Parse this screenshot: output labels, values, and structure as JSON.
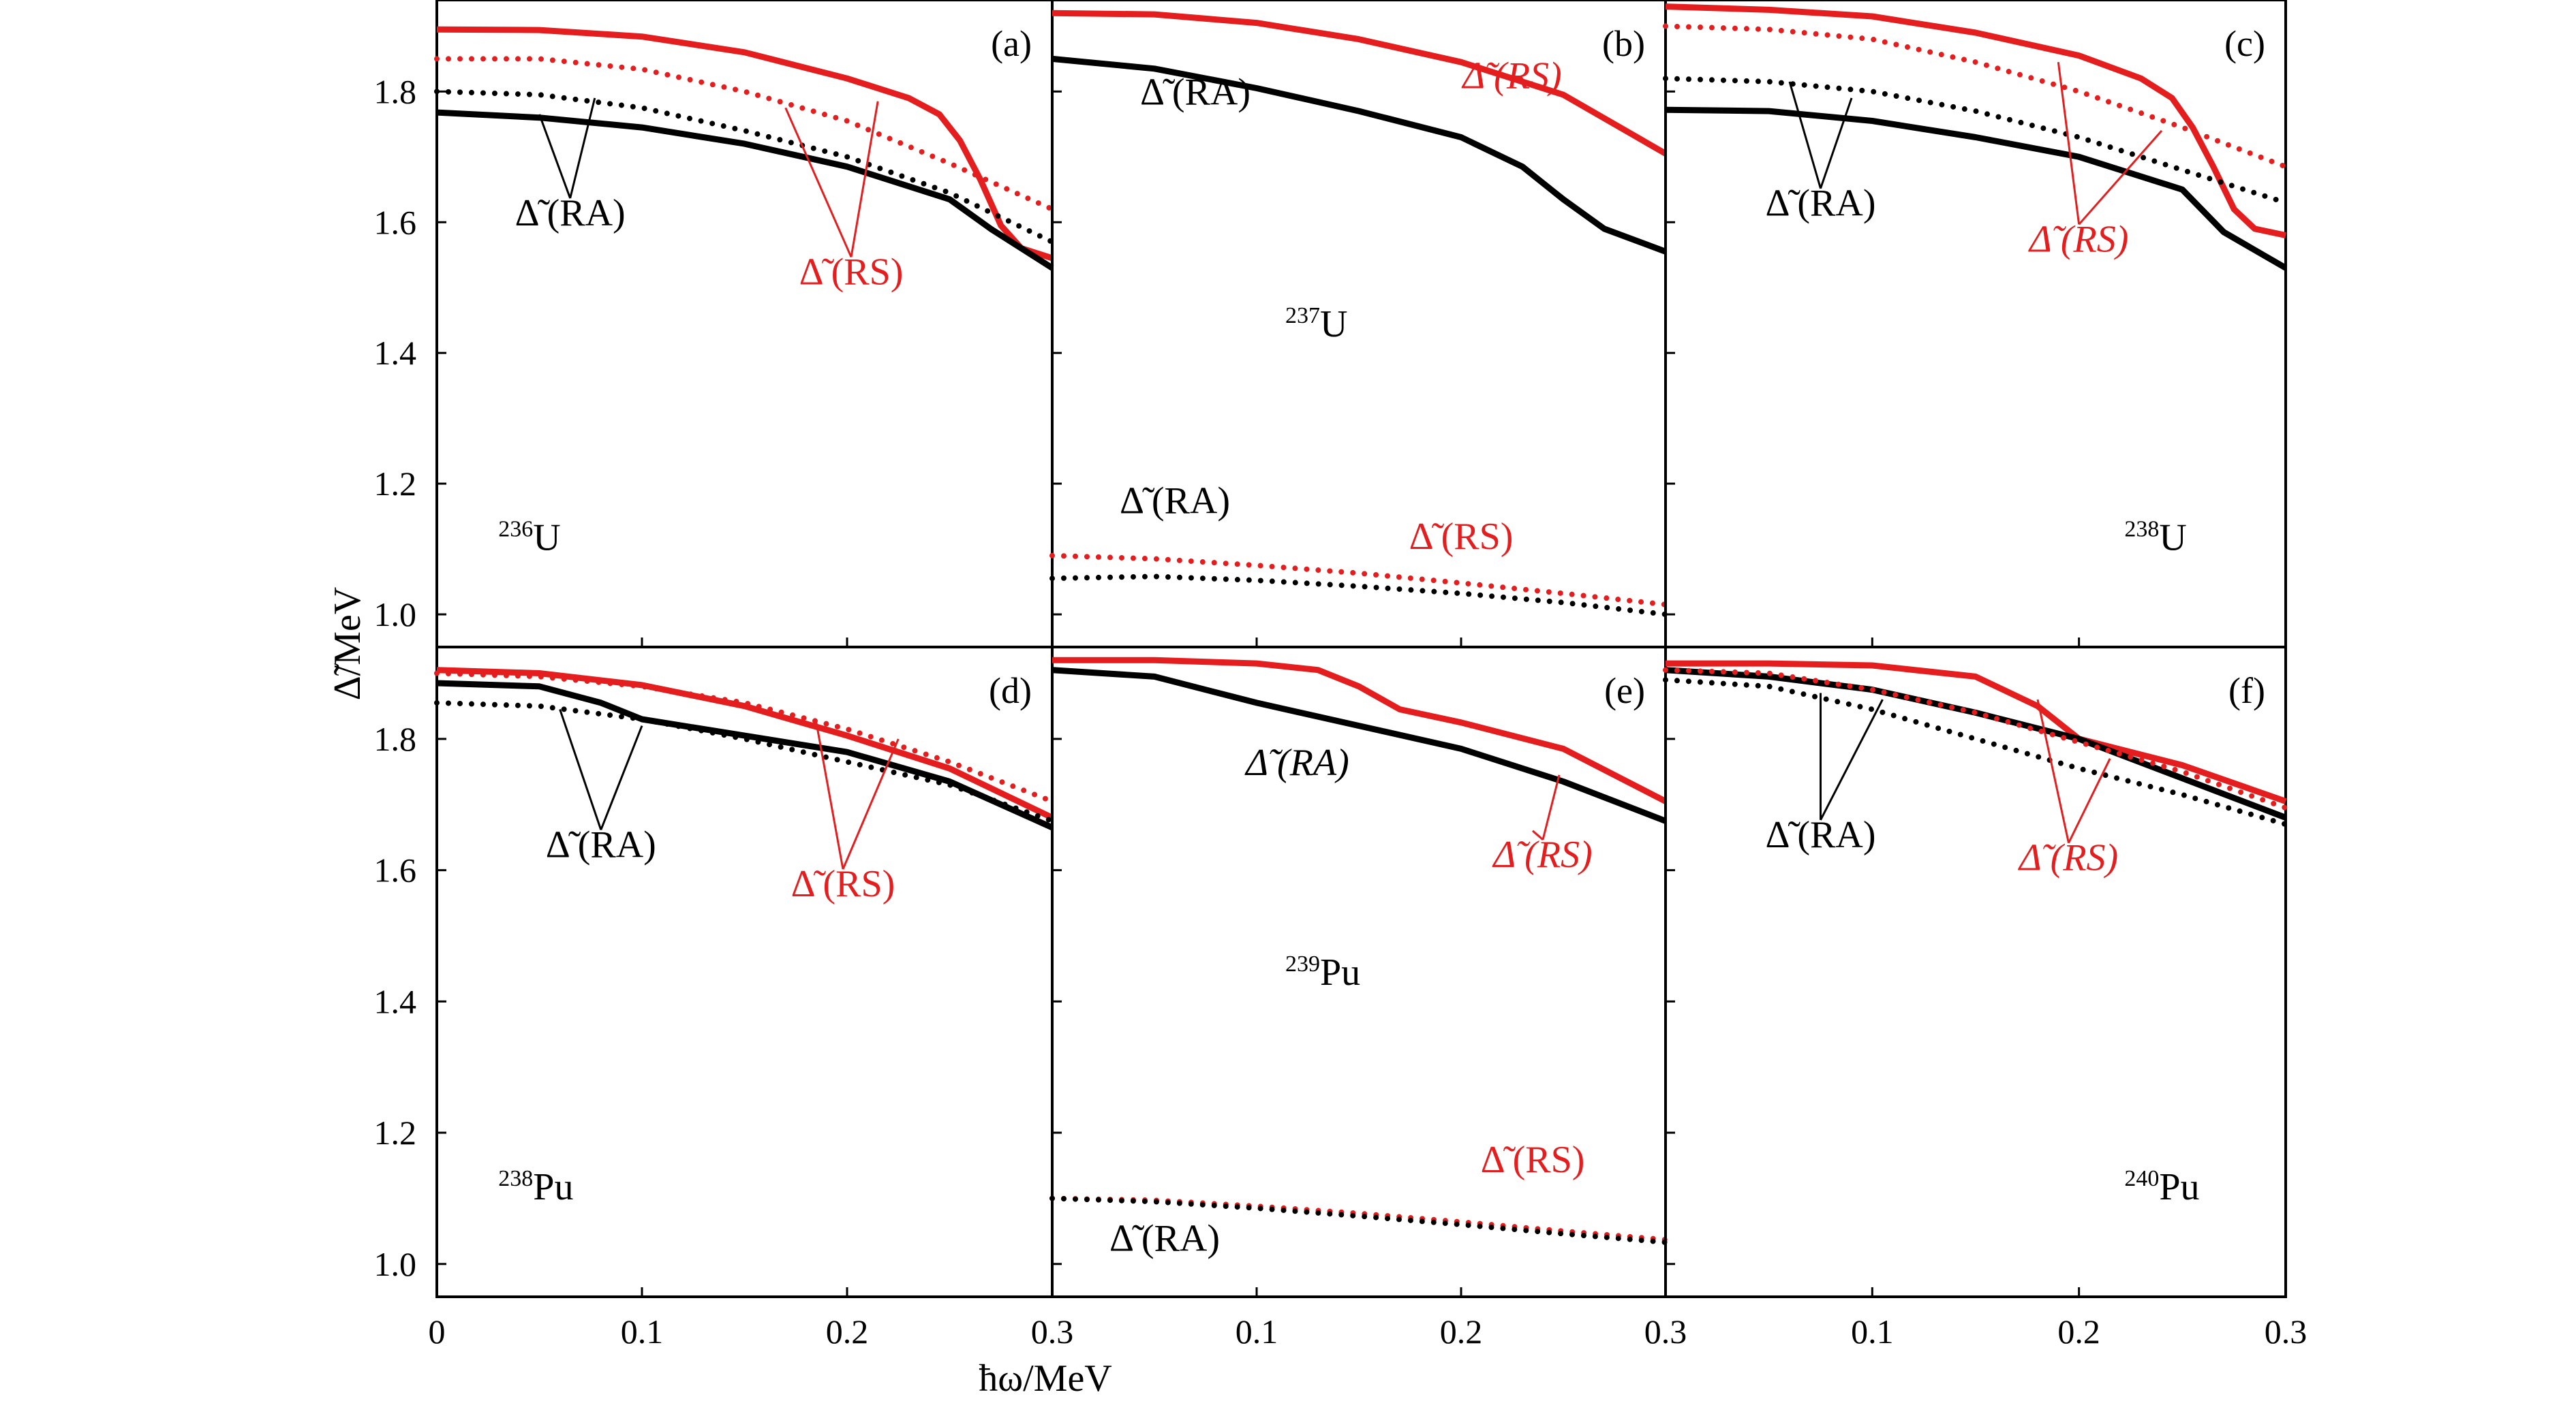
{
  "figure": {
    "xlabel": "ħω/MeV",
    "ylabel": "Δ̃/MeV"
  },
  "colors": {
    "rs": "#e41e1e",
    "ra": "#000000"
  },
  "chart_data": [
    {
      "id": "a",
      "type": "line",
      "panel_label": "(a)",
      "nucleus": {
        "mass": "236",
        "symbol": "U"
      },
      "xlim": [
        0,
        0.3
      ],
      "ylim": [
        0.95,
        1.94
      ],
      "x_ticks": [
        "0",
        "0.1",
        "0.2",
        "0.3"
      ],
      "y_ticks": [
        "1.0",
        "1.2",
        "1.4",
        "1.6",
        "1.8"
      ],
      "grid": false,
      "annotations": [
        {
          "text": "Δ̃ (RA)",
          "kind": "ra",
          "italic": false,
          "label_at": [
            0.065,
            1.595
          ],
          "leaders": [
            [
              0.05,
              1.765
            ],
            [
              0.077,
              1.79
            ]
          ]
        },
        {
          "text": "Δ̃ (RS)",
          "kind": "rs",
          "italic": false,
          "label_at": [
            0.202,
            1.505
          ],
          "leaders": [
            [
              0.17,
              1.775
            ],
            [
              0.215,
              1.785
            ]
          ]
        }
      ],
      "series": [
        {
          "kind": "rs",
          "style": "solid",
          "x": [
            0,
            0.05,
            0.1,
            0.15,
            0.2,
            0.23,
            0.245,
            0.255,
            0.265,
            0.275,
            0.285,
            0.3
          ],
          "y": [
            1.895,
            1.894,
            1.884,
            1.86,
            1.82,
            1.79,
            1.765,
            1.725,
            1.665,
            1.595,
            1.56,
            1.545
          ]
        },
        {
          "kind": "rs",
          "style": "dotted",
          "x": [
            0,
            0.05,
            0.1,
            0.15,
            0.2,
            0.25,
            0.3
          ],
          "y": [
            1.85,
            1.85,
            1.834,
            1.8,
            1.755,
            1.69,
            1.62
          ]
        },
        {
          "kind": "ra",
          "style": "dotted",
          "x": [
            0,
            0.05,
            0.1,
            0.15,
            0.2,
            0.25,
            0.3
          ],
          "y": [
            1.8,
            1.795,
            1.775,
            1.74,
            1.7,
            1.645,
            1.57
          ]
        },
        {
          "kind": "ra",
          "style": "solid",
          "x": [
            0,
            0.05,
            0.1,
            0.15,
            0.2,
            0.25,
            0.27,
            0.3
          ],
          "y": [
            1.768,
            1.76,
            1.745,
            1.72,
            1.685,
            1.635,
            1.59,
            1.53
          ]
        }
      ]
    },
    {
      "id": "b",
      "type": "line",
      "panel_label": "(b)",
      "nucleus": {
        "mass": "237",
        "symbol": "U"
      },
      "xlim": [
        0,
        0.3
      ],
      "ylim": [
        0.95,
        1.94
      ],
      "x_ticks": [
        "0.1",
        "0.2",
        "0.3"
      ],
      "y_ticks": [],
      "grid": false,
      "annotations": [
        {
          "text": "Δ̃ (RA)",
          "kind": "ra",
          "italic": false,
          "label_at": [
            0.07,
            1.78
          ],
          "leaders": []
        },
        {
          "text": "Δ̃ (RS)",
          "kind": "rs",
          "italic": true,
          "label_at": [
            0.225,
            1.805
          ],
          "leaders": []
        },
        {
          "text": "Δ̃ (RA)",
          "kind": "ra",
          "italic": false,
          "label_at": [
            0.06,
            1.155
          ],
          "leaders": []
        },
        {
          "text": "Δ̃ (RS)",
          "kind": "rs",
          "italic": false,
          "label_at": [
            0.2,
            1.1
          ],
          "leaders": []
        }
      ],
      "series": [
        {
          "kind": "rs",
          "style": "solid",
          "x": [
            0,
            0.05,
            0.1,
            0.15,
            0.2,
            0.25,
            0.3
          ],
          "y": [
            1.92,
            1.918,
            1.905,
            1.88,
            1.845,
            1.795,
            1.705
          ]
        },
        {
          "kind": "ra",
          "style": "solid",
          "x": [
            0,
            0.05,
            0.1,
            0.15,
            0.2,
            0.23,
            0.25,
            0.27,
            0.3
          ],
          "y": [
            1.85,
            1.835,
            1.805,
            1.77,
            1.73,
            1.685,
            1.635,
            1.59,
            1.555
          ]
        },
        {
          "kind": "rs",
          "style": "dotted",
          "x": [
            0,
            0.05,
            0.1,
            0.15,
            0.2,
            0.25,
            0.3
          ],
          "y": [
            1.09,
            1.085,
            1.075,
            1.063,
            1.048,
            1.032,
            1.015
          ]
        },
        {
          "kind": "ra",
          "style": "dotted",
          "x": [
            0,
            0.05,
            0.1,
            0.15,
            0.2,
            0.25,
            0.3
          ],
          "y": [
            1.055,
            1.058,
            1.052,
            1.043,
            1.032,
            1.018,
            1.0
          ]
        }
      ]
    },
    {
      "id": "c",
      "type": "line",
      "panel_label": "(c)",
      "nucleus": {
        "mass": "238",
        "symbol": "U"
      },
      "xlim": [
        0,
        0.3
      ],
      "ylim": [
        0.95,
        1.94
      ],
      "x_ticks": [
        "0.1",
        "0.2",
        "0.3"
      ],
      "y_ticks": [],
      "grid": false,
      "annotations": [
        {
          "text": "Δ̃ (RA)",
          "kind": "ra",
          "italic": false,
          "label_at": [
            0.075,
            1.61
          ],
          "leaders": [
            [
              0.06,
              1.815
            ],
            [
              0.09,
              1.79
            ]
          ]
        },
        {
          "text": "Δ̃ (RS)",
          "kind": "rs",
          "italic": true,
          "label_at": [
            0.2,
            1.555
          ],
          "leaders": [
            [
              0.19,
              1.845
            ],
            [
              0.24,
              1.74
            ]
          ]
        }
      ],
      "series": [
        {
          "kind": "rs",
          "style": "solid",
          "x": [
            0,
            0.05,
            0.1,
            0.15,
            0.2,
            0.23,
            0.245,
            0.255,
            0.265,
            0.275,
            0.285,
            0.3
          ],
          "y": [
            1.93,
            1.925,
            1.915,
            1.89,
            1.855,
            1.82,
            1.79,
            1.745,
            1.685,
            1.62,
            1.59,
            1.58
          ]
        },
        {
          "kind": "rs",
          "style": "dotted",
          "x": [
            0,
            0.05,
            0.1,
            0.15,
            0.2,
            0.25,
            0.3
          ],
          "y": [
            1.9,
            1.895,
            1.88,
            1.845,
            1.8,
            1.745,
            1.685
          ]
        },
        {
          "kind": "ra",
          "style": "dotted",
          "x": [
            0,
            0.05,
            0.1,
            0.15,
            0.2,
            0.25,
            0.3
          ],
          "y": [
            1.82,
            1.815,
            1.8,
            1.77,
            1.73,
            1.68,
            1.63
          ]
        },
        {
          "kind": "ra",
          "style": "solid",
          "x": [
            0,
            0.05,
            0.1,
            0.15,
            0.2,
            0.25,
            0.27,
            0.3
          ],
          "y": [
            1.772,
            1.77,
            1.755,
            1.73,
            1.7,
            1.65,
            1.585,
            1.53
          ]
        }
      ]
    },
    {
      "id": "d",
      "type": "line",
      "panel_label": "(d)",
      "nucleus": {
        "mass": "238",
        "symbol": "Pu"
      },
      "xlim": [
        0,
        0.3
      ],
      "ylim": [
        0.95,
        1.94
      ],
      "x_ticks": [
        "0",
        "0.1",
        "0.2",
        "0.3"
      ],
      "y_ticks": [
        "1.0",
        "1.2",
        "1.4",
        "1.6",
        "1.8"
      ],
      "grid": false,
      "annotations": [
        {
          "text": "Δ̃ (RA)",
          "kind": "ra",
          "italic": false,
          "label_at": [
            0.08,
            1.62
          ],
          "leaders": [
            [
              0.06,
              1.845
            ],
            [
              0.1,
              1.82
            ]
          ]
        },
        {
          "text": "Δ̃ (RS)",
          "kind": "rs",
          "italic": false,
          "label_at": [
            0.198,
            1.56
          ],
          "leaders": [
            [
              0.185,
              1.825
            ],
            [
              0.225,
              1.8
            ]
          ]
        }
      ],
      "series": [
        {
          "kind": "rs",
          "style": "solid",
          "x": [
            0,
            0.05,
            0.1,
            0.15,
            0.2,
            0.25,
            0.3
          ],
          "y": [
            1.905,
            1.9,
            1.882,
            1.85,
            1.805,
            1.755,
            1.68
          ]
        },
        {
          "kind": "rs",
          "style": "dotted",
          "x": [
            0,
            0.05,
            0.1,
            0.15,
            0.2,
            0.25,
            0.3
          ],
          "y": [
            1.9,
            1.895,
            1.88,
            1.855,
            1.815,
            1.765,
            1.705
          ]
        },
        {
          "kind": "ra",
          "style": "solid",
          "x": [
            0,
            0.05,
            0.08,
            0.1,
            0.15,
            0.2,
            0.25,
            0.3
          ],
          "y": [
            1.885,
            1.88,
            1.855,
            1.83,
            1.805,
            1.78,
            1.735,
            1.665
          ]
        },
        {
          "kind": "ra",
          "style": "dotted",
          "x": [
            0,
            0.05,
            0.1,
            0.15,
            0.2,
            0.25,
            0.3
          ],
          "y": [
            1.855,
            1.85,
            1.83,
            1.8,
            1.765,
            1.73,
            1.675
          ]
        }
      ]
    },
    {
      "id": "e",
      "type": "line",
      "panel_label": "(e)",
      "nucleus": {
        "mass": "239",
        "symbol": "Pu"
      },
      "xlim": [
        0,
        0.3
      ],
      "ylim": [
        0.95,
        1.94
      ],
      "x_ticks": [
        "0.1",
        "0.2",
        "0.3"
      ],
      "y_ticks": [],
      "grid": false,
      "annotations": [
        {
          "text": "Δ̃ (RA)",
          "kind": "ra",
          "italic": true,
          "label_at": [
            0.12,
            1.745
          ],
          "leaders": []
        },
        {
          "text": "Δ̃ (RS)",
          "kind": "rs",
          "italic": true,
          "label_at": [
            0.24,
            1.605
          ],
          "leaders": [
            [
              0.235,
              1.66
            ],
            [
              0.248,
              1.745
            ]
          ]
        },
        {
          "text": "Δ̃ (RS)",
          "kind": "rs",
          "italic": false,
          "label_at": [
            0.235,
            1.14
          ],
          "leaders": []
        },
        {
          "text": "Δ̃ (RA)",
          "kind": "ra",
          "italic": false,
          "label_at": [
            0.055,
            1.02
          ],
          "leaders": []
        }
      ],
      "series": [
        {
          "kind": "rs",
          "style": "solid",
          "x": [
            0,
            0.05,
            0.1,
            0.13,
            0.15,
            0.17,
            0.2,
            0.25,
            0.3
          ],
          "y": [
            1.92,
            1.92,
            1.915,
            1.905,
            1.88,
            1.845,
            1.825,
            1.785,
            1.705
          ]
        },
        {
          "kind": "ra",
          "style": "solid",
          "x": [
            0,
            0.05,
            0.1,
            0.15,
            0.2,
            0.25,
            0.3
          ],
          "y": [
            1.905,
            1.895,
            1.855,
            1.82,
            1.785,
            1.735,
            1.675
          ]
        },
        {
          "kind": "rs",
          "style": "dotted",
          "x": [
            0,
            0.05,
            0.1,
            0.15,
            0.2,
            0.25,
            0.3
          ],
          "y": [
            1.1,
            1.097,
            1.088,
            1.077,
            1.064,
            1.05,
            1.037
          ]
        },
        {
          "kind": "ra",
          "style": "dotted",
          "x": [
            0,
            0.05,
            0.1,
            0.15,
            0.2,
            0.25,
            0.3
          ],
          "y": [
            1.1,
            1.095,
            1.085,
            1.073,
            1.06,
            1.046,
            1.033
          ]
        }
      ]
    },
    {
      "id": "f",
      "type": "line",
      "panel_label": "(f)",
      "nucleus": {
        "mass": "240",
        "symbol": "Pu"
      },
      "xlim": [
        0,
        0.3
      ],
      "ylim": [
        0.95,
        1.94
      ],
      "x_ticks": [
        "0.1",
        "0.2",
        "0.3"
      ],
      "y_ticks": [],
      "grid": false,
      "annotations": [
        {
          "text": "Δ̃ (RA)",
          "kind": "ra",
          "italic": false,
          "label_at": [
            0.075,
            1.635
          ],
          "leaders": [
            [
              0.075,
              1.87
            ],
            [
              0.105,
              1.86
            ]
          ]
        },
        {
          "text": "Δ̃ (RS)",
          "kind": "rs",
          "italic": true,
          "label_at": [
            0.195,
            1.6
          ],
          "leaders": [
            [
              0.18,
              1.86
            ],
            [
              0.215,
              1.77
            ]
          ]
        }
      ],
      "series": [
        {
          "kind": "rs",
          "style": "solid",
          "x": [
            0,
            0.05,
            0.1,
            0.15,
            0.18,
            0.2,
            0.25,
            0.3
          ],
          "y": [
            1.915,
            1.915,
            1.912,
            1.895,
            1.85,
            1.8,
            1.76,
            1.705
          ]
        },
        {
          "kind": "ra",
          "style": "solid",
          "x": [
            0,
            0.05,
            0.1,
            0.15,
            0.2,
            0.25,
            0.3
          ],
          "y": [
            1.905,
            1.895,
            1.875,
            1.84,
            1.8,
            1.74,
            1.68
          ]
        },
        {
          "kind": "rs",
          "style": "dotted",
          "x": [
            0,
            0.05,
            0.1,
            0.15,
            0.2,
            0.25,
            0.3
          ],
          "y": [
            1.905,
            1.9,
            1.875,
            1.84,
            1.795,
            1.75,
            1.695
          ]
        },
        {
          "kind": "ra",
          "style": "dotted",
          "x": [
            0,
            0.05,
            0.1,
            0.15,
            0.2,
            0.25,
            0.3
          ],
          "y": [
            1.89,
            1.88,
            1.845,
            1.8,
            1.755,
            1.715,
            1.67
          ]
        }
      ]
    }
  ]
}
